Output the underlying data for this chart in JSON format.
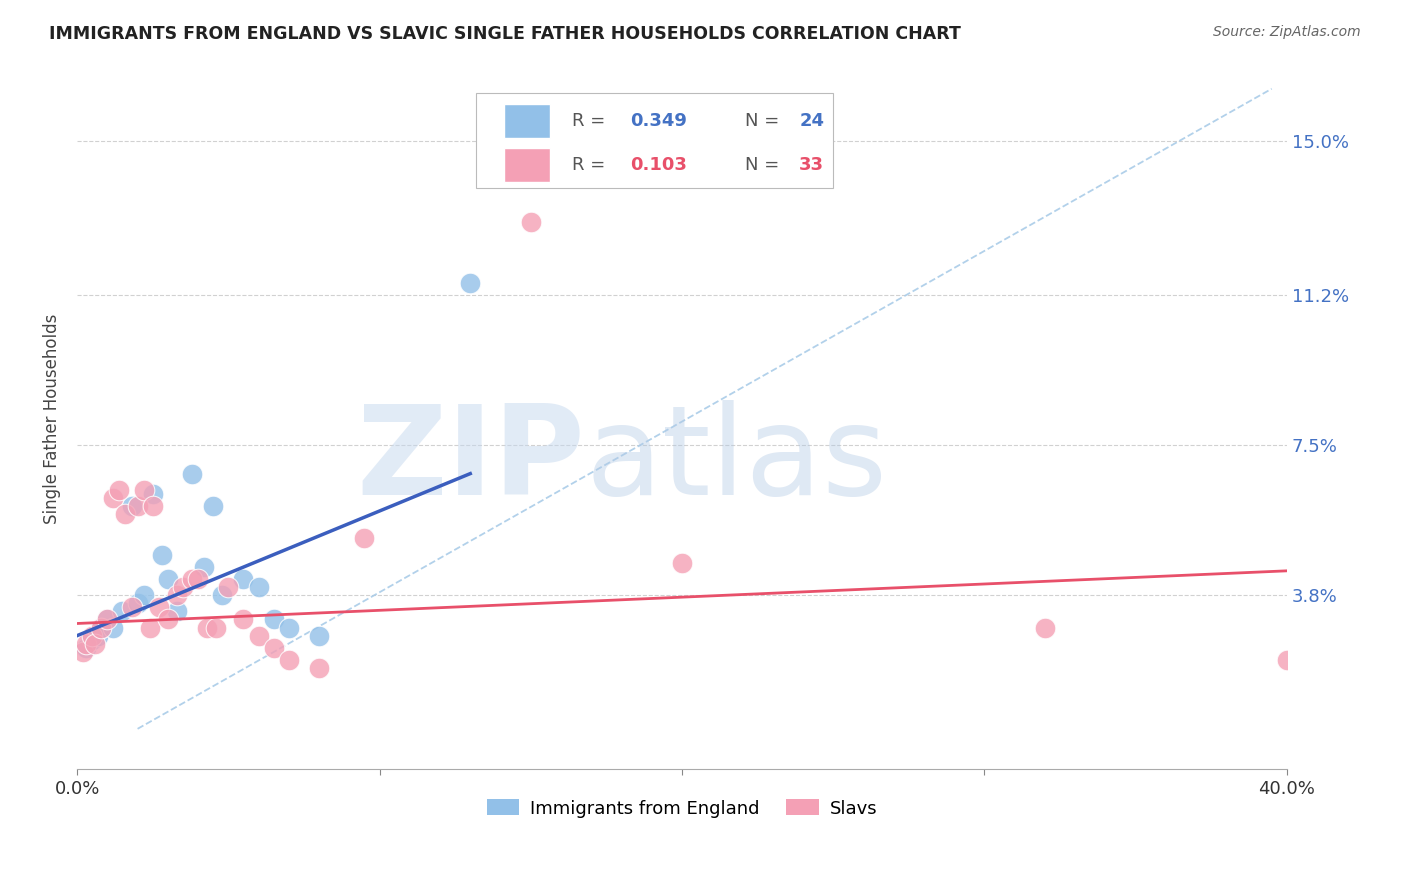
{
  "title": "IMMIGRANTS FROM ENGLAND VS SLAVIC SINGLE FATHER HOUSEHOLDS CORRELATION CHART",
  "source": "Source: ZipAtlas.com",
  "ylabel": "Single Father Households",
  "xlim": [
    0.0,
    0.4
  ],
  "ylim": [
    -0.005,
    0.168
  ],
  "xticks": [
    0.0,
    0.1,
    0.2,
    0.3,
    0.4
  ],
  "xticklabels": [
    "0.0%",
    "",
    "",
    "",
    "40.0%"
  ],
  "yticks": [
    0.038,
    0.075,
    0.112,
    0.15
  ],
  "yticklabels": [
    "3.8%",
    "7.5%",
    "11.2%",
    "15.0%"
  ],
  "blue_color": "#92C0E8",
  "pink_color": "#F4A0B5",
  "blue_line_color": "#3B5EBE",
  "pink_line_color": "#E8506A",
  "dashed_line_color": "#AACCE8",
  "legend_R1": "0.349",
  "legend_N1": "24",
  "legend_R2": "0.103",
  "legend_N2": "33",
  "watermark_zip": "ZIP",
  "watermark_atlas": "atlas",
  "blue_scatter_x": [
    0.003,
    0.005,
    0.007,
    0.008,
    0.01,
    0.012,
    0.015,
    0.018,
    0.02,
    0.022,
    0.025,
    0.028,
    0.03,
    0.033,
    0.038,
    0.042,
    0.045,
    0.048,
    0.055,
    0.06,
    0.065,
    0.07,
    0.08,
    0.13
  ],
  "blue_scatter_y": [
    0.025,
    0.027,
    0.028,
    0.03,
    0.032,
    0.03,
    0.034,
    0.06,
    0.036,
    0.038,
    0.063,
    0.048,
    0.042,
    0.034,
    0.068,
    0.045,
    0.06,
    0.038,
    0.042,
    0.04,
    0.032,
    0.03,
    0.028,
    0.115
  ],
  "pink_scatter_x": [
    0.002,
    0.003,
    0.005,
    0.006,
    0.008,
    0.01,
    0.012,
    0.014,
    0.016,
    0.018,
    0.02,
    0.022,
    0.024,
    0.025,
    0.027,
    0.03,
    0.033,
    0.035,
    0.038,
    0.04,
    0.043,
    0.046,
    0.05,
    0.055,
    0.06,
    0.065,
    0.07,
    0.08,
    0.095,
    0.15,
    0.2,
    0.32,
    0.4
  ],
  "pink_scatter_y": [
    0.024,
    0.026,
    0.028,
    0.026,
    0.03,
    0.032,
    0.062,
    0.064,
    0.058,
    0.035,
    0.06,
    0.064,
    0.03,
    0.06,
    0.035,
    0.032,
    0.038,
    0.04,
    0.042,
    0.042,
    0.03,
    0.03,
    0.04,
    0.032,
    0.028,
    0.025,
    0.022,
    0.02,
    0.052,
    0.13,
    0.046,
    0.03,
    0.022
  ],
  "blue_line_x": [
    0.0,
    0.13
  ],
  "blue_line_y": [
    0.028,
    0.068
  ],
  "pink_line_x": [
    0.0,
    0.4
  ],
  "pink_line_y": [
    0.031,
    0.044
  ],
  "dashed_line_x": [
    0.02,
    0.395
  ],
  "dashed_line_y": [
    0.005,
    0.163
  ]
}
